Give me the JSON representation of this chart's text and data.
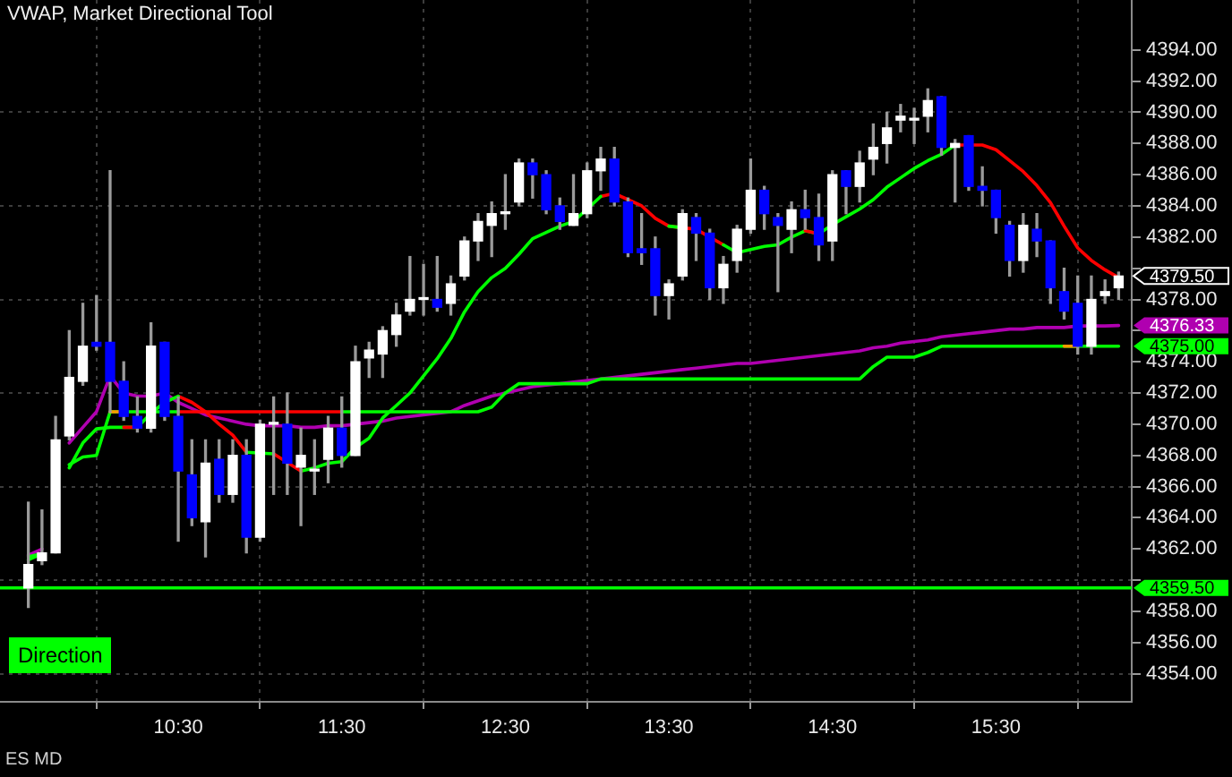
{
  "chart_data": {
    "type": "candlestick",
    "title": "VWAP, Market Directional Tool",
    "annotations": [
      "Direction",
      "ES MD"
    ],
    "x": [
      9.5833,
      9.6667,
      9.75,
      9.8333,
      9.9167,
      10,
      10.0833,
      10.1667,
      10.25,
      10.3333,
      10.4167,
      10.5,
      10.5833,
      10.6667,
      10.75,
      10.8333,
      10.9167,
      11,
      11.0833,
      11.1667,
      11.25,
      11.3333,
      11.4167,
      11.5,
      11.5833,
      11.6667,
      11.75,
      11.8333,
      11.9167,
      12,
      12.0833,
      12.1667,
      12.25,
      12.3333,
      12.4167,
      12.5,
      12.5833,
      12.6667,
      12.75,
      12.8333,
      12.9167,
      13,
      13.0833,
      13.1667,
      13.25,
      13.3333,
      13.4167,
      13.5,
      13.5833,
      13.6667,
      13.75,
      13.8333,
      13.9167,
      14,
      14.0833,
      14.1667,
      14.25,
      14.3333,
      14.4167,
      14.5,
      14.5833,
      14.6667,
      14.75,
      14.8333,
      14.9167,
      15,
      15.0833,
      15.1667,
      15.25,
      15.3333,
      15.4167,
      15.5,
      15.5833,
      15.6667,
      15.75,
      15.8333,
      15.9167,
      16,
      16.0833,
      16.1667,
      16.25
    ],
    "xlim": [
      9.41,
      16.33
    ],
    "xticks": [
      {
        "value": 10.5,
        "label": "10:30"
      },
      {
        "value": 11.5,
        "label": "11:30"
      },
      {
        "value": 12.5,
        "label": "12:30"
      },
      {
        "value": 13.5,
        "label": "13:30"
      },
      {
        "value": 14.5,
        "label": "14:30"
      },
      {
        "value": 15.5,
        "label": "15:30"
      }
    ],
    "ylim": [
      4352.2,
      4397.2
    ],
    "yticks": [
      {
        "value": 4354,
        "label": "4354.00"
      },
      {
        "value": 4356,
        "label": "4356.00"
      },
      {
        "value": 4358,
        "label": "4358.00"
      },
      {
        "value": 4360,
        "label": null
      },
      {
        "value": 4362,
        "label": "4362.00"
      },
      {
        "value": 4364,
        "label": "4364.00"
      },
      {
        "value": 4366,
        "label": "4366.00"
      },
      {
        "value": 4368,
        "label": "4368.00"
      },
      {
        "value": 4370,
        "label": "4370.00"
      },
      {
        "value": 4372,
        "label": "4372.00"
      },
      {
        "value": 4374,
        "label": "4374.00"
      },
      {
        "value": 4376,
        "label": null
      },
      {
        "value": 4378,
        "label": "4378.00"
      },
      {
        "value": 4380,
        "label": null
      },
      {
        "value": 4382,
        "label": "4382.00"
      },
      {
        "value": 4384,
        "label": "4384.00"
      },
      {
        "value": 4386,
        "label": "4386.00"
      },
      {
        "value": 4388,
        "label": "4388.00"
      },
      {
        "value": 4390,
        "label": "4390.00"
      },
      {
        "value": 4392,
        "label": "4392.00"
      },
      {
        "value": 4394,
        "label": "4394.00"
      }
    ],
    "grid": true,
    "series": [
      {
        "ohlc": [
          [
            4359.5,
            4365,
            4358.25,
            4361
          ],
          [
            4361.25,
            4364.5,
            4361,
            4361.75
          ],
          [
            4361.75,
            4370.5,
            4361.75,
            4369
          ],
          [
            4369.25,
            4376,
            4369,
            4373
          ],
          [
            4372.75,
            4377.75,
            4372.5,
            4375
          ],
          [
            4375.25,
            4378.25,
            4374.75,
            4375
          ],
          [
            4375.25,
            4386.25,
            4370.75,
            4372.75
          ],
          [
            4372.75,
            4374,
            4370.25,
            4370.5
          ],
          [
            4370.5,
            4371.75,
            4369.5,
            4369.75
          ],
          [
            4369.75,
            4376.5,
            4369.5,
            4375
          ],
          [
            4375.25,
            4375.25,
            4370.25,
            4370.5
          ],
          [
            4370.5,
            4371.75,
            4362.5,
            4367
          ],
          [
            4366.75,
            4369,
            4363.5,
            4364
          ],
          [
            4363.75,
            4369,
            4361.5,
            4367.5
          ],
          [
            4367.75,
            4369,
            4365,
            4365.5
          ],
          [
            4365.5,
            4369,
            4365,
            4368
          ],
          [
            4368,
            4369,
            4361.75,
            4362.75
          ],
          [
            4362.75,
            4370.25,
            4362.5,
            4370
          ],
          [
            4370,
            4371.75,
            4365.5,
            4370
          ],
          [
            4370,
            4372,
            4365.5,
            4367.5
          ],
          [
            4367.25,
            4369.75,
            4363.5,
            4368
          ],
          [
            4367,
            4369,
            4365.5,
            4367
          ],
          [
            4367.75,
            4370.5,
            4366.25,
            4369.75
          ],
          [
            4369.75,
            4371.75,
            4367.25,
            4368
          ],
          [
            4368,
            4375,
            4368,
            4374
          ],
          [
            4374.25,
            4375.25,
            4373,
            4374.75
          ],
          [
            4374.5,
            4376.25,
            4373,
            4376
          ],
          [
            4375.75,
            4377.75,
            4375,
            4377
          ],
          [
            4377.25,
            4380.75,
            4377,
            4378
          ],
          [
            4378,
            4380.25,
            4377,
            4378
          ],
          [
            4378,
            4380.75,
            4377.25,
            4377.5
          ],
          [
            4377.75,
            4379.5,
            4377,
            4379
          ],
          [
            4379.5,
            4382,
            4379.25,
            4381.75
          ],
          [
            4381.75,
            4383.5,
            4380.5,
            4383
          ],
          [
            4382.75,
            4384.25,
            4380.75,
            4383.5
          ],
          [
            4383.5,
            4386,
            4382.5,
            4383.5
          ],
          [
            4384.25,
            4387,
            4384,
            4386.75
          ],
          [
            4386.75,
            4387,
            4384.5,
            4386
          ],
          [
            4386,
            4386.25,
            4383.5,
            4383.75
          ],
          [
            4384,
            4384.5,
            4382.5,
            4383
          ],
          [
            4382.75,
            4386,
            4382.75,
            4383.5
          ],
          [
            4383.5,
            4386.75,
            4383.25,
            4386.25
          ],
          [
            4386.25,
            4387.75,
            4385,
            4387
          ],
          [
            4387,
            4387.75,
            4384,
            4384.25
          ],
          [
            4384.25,
            4384.5,
            4380.75,
            4381
          ],
          [
            4381.25,
            4383.5,
            4380.25,
            4381
          ],
          [
            4381.25,
            4382,
            4377,
            4378.25
          ],
          [
            4378.25,
            4379.25,
            4376.75,
            4379
          ],
          [
            4379.5,
            4383.75,
            4379.25,
            4383.5
          ],
          [
            4383.25,
            4383.5,
            4380.5,
            4382.25
          ],
          [
            4382.25,
            4382.5,
            4378,
            4378.75
          ],
          [
            4378.75,
            4380.75,
            4377.75,
            4380.25
          ],
          [
            4380.5,
            4382.75,
            4379.75,
            4382.5
          ],
          [
            4382.5,
            4387,
            4382.25,
            4385
          ],
          [
            4385,
            4385.25,
            4382.5,
            4383.5
          ],
          [
            4383.25,
            4383.5,
            4378.5,
            4382.75
          ],
          [
            4382.5,
            4384.25,
            4381,
            4383.75
          ],
          [
            4383.75,
            4385,
            4382.5,
            4383.25
          ],
          [
            4383.25,
            4384.75,
            4380.5,
            4381.5
          ],
          [
            4381.75,
            4386.25,
            4380.5,
            4386
          ],
          [
            4386.25,
            4386.25,
            4383.5,
            4385.25
          ],
          [
            4385.25,
            4387.5,
            4384.25,
            4386.75
          ],
          [
            4387,
            4389.25,
            4386,
            4387.75
          ],
          [
            4388,
            4390,
            4386.75,
            4389
          ],
          [
            4389.5,
            4390.5,
            4388.75,
            4389.75
          ],
          [
            4389.5,
            4390.25,
            4388,
            4389.5
          ],
          [
            4389.75,
            4391.5,
            4388.75,
            4390.75
          ],
          [
            4391,
            4391,
            4387.25,
            4387.75
          ],
          [
            4387.75,
            4388.25,
            4384.25,
            4388
          ],
          [
            4388.5,
            4388.5,
            4385,
            4385.25
          ],
          [
            4385.25,
            4386.5,
            4384,
            4385
          ],
          [
            4385,
            4385,
            4382.25,
            4383.25
          ],
          [
            4382.75,
            4383,
            4379.5,
            4380.5
          ],
          [
            4380.5,
            4383.5,
            4379.75,
            4382.75
          ],
          [
            4382.5,
            4383.5,
            4380.75,
            4381.75
          ],
          [
            4381.75,
            4381.75,
            4377.75,
            4378.75
          ],
          [
            4378.5,
            4380,
            4376.75,
            4377.25
          ],
          [
            4377.75,
            4379.5,
            4374.5,
            4375
          ],
          [
            4375,
            4379.5,
            4374.5,
            4378
          ],
          [
            4378.25,
            4379.25,
            4377.75,
            4378.5
          ],
          [
            4378.75,
            4379.75,
            4378,
            4379.5
          ]
        ],
        "colors": [
          "#ffffff",
          "#ffffff",
          "#ffffff",
          "#ffffff",
          "#ffffff",
          "#0000ff",
          "#0000ff",
          "#0000ff",
          "#0000ff",
          "#ffffff",
          "#0000ff",
          "#0000ff",
          "#0000ff",
          "#ffffff",
          "#0000ff",
          "#ffffff",
          "#0000ff",
          "#ffffff",
          "#ffffff",
          "#0000ff",
          "#ffffff",
          "#ffffff",
          "#ffffff",
          "#0000ff",
          "#ffffff",
          "#ffffff",
          "#ffffff",
          "#ffffff",
          "#ffffff",
          "#ffffff",
          "#0000ff",
          "#ffffff",
          "#ffffff",
          "#ffffff",
          "#ffffff",
          "#ffffff",
          "#ffffff",
          "#0000ff",
          "#0000ff",
          "#0000ff",
          "#ffffff",
          "#ffffff",
          "#ffffff",
          "#0000ff",
          "#0000ff",
          "#0000ff",
          "#0000ff",
          "#ffffff",
          "#ffffff",
          "#0000ff",
          "#0000ff",
          "#ffffff",
          "#ffffff",
          "#ffffff",
          "#0000ff",
          "#0000ff",
          "#ffffff",
          "#0000ff",
          "#0000ff",
          "#ffffff",
          "#0000ff",
          "#ffffff",
          "#ffffff",
          "#ffffff",
          "#ffffff",
          "#ffffff",
          "#ffffff",
          "#0000ff",
          "#ffffff",
          "#0000ff",
          "#0000ff",
          "#0000ff",
          "#0000ff",
          "#ffffff",
          "#0000ff",
          "#0000ff",
          "#0000ff",
          "#0000ff",
          "#ffffff",
          "#ffffff",
          "#ffffff"
        ],
        "value_labels": [
          null,
          null,
          null,
          null,
          null,
          null,
          null,
          null,
          null,
          null,
          null,
          null,
          null,
          null,
          null,
          null,
          null,
          null,
          null,
          null,
          null,
          null,
          null,
          null,
          null,
          null,
          null,
          null,
          null,
          null,
          null,
          null,
          null,
          null,
          null,
          null,
          null,
          null,
          null,
          null,
          null,
          null,
          null,
          null,
          null,
          null,
          null,
          null,
          null,
          null,
          null,
          null,
          null,
          null,
          null,
          null,
          null,
          null,
          null,
          null,
          null,
          null,
          null,
          null,
          null,
          null,
          null,
          null,
          null,
          null,
          null,
          null,
          null,
          null,
          null,
          null,
          null,
          null,
          null,
          null,
          "4379.50"
        ]
      },
      {
        "type": "line",
        "color": "#b000b0",
        "values": [
          4361.6,
          4362.0,
          null,
          4368.8,
          4369.8,
          4370.8,
          4373.1,
          4372.0,
          4371.8,
          4371.8,
          4372.0,
          4371.4,
          4371.0,
          4370.6,
          4370.4,
          4370.2,
          4370.0,
          4369.9,
          4369.9,
          4369.9,
          4369.8,
          4369.8,
          4369.9,
          4369.9,
          4370.0,
          4370.1,
          4370.2,
          4370.4,
          4370.5,
          4370.6,
          4370.7,
          4370.8,
          4371.2,
          4371.5,
          4371.8,
          4372.0,
          4372.2,
          4372.4,
          4372.5,
          4372.6,
          4372.7,
          4372.8,
          4372.9,
          4373.0,
          4373.1,
          4373.2,
          4373.3,
          4373.4,
          4373.5,
          4373.6,
          4373.7,
          4373.8,
          4373.9,
          4373.9,
          4374.0,
          4374.1,
          4374.2,
          4374.3,
          4374.4,
          4374.5,
          4374.6,
          4374.7,
          4374.9,
          4375.0,
          4375.2,
          4375.3,
          4375.4,
          4375.6,
          4375.7,
          4375.8,
          4375.9,
          4376.0,
          4376.1,
          4376.1,
          4376.2,
          4376.2,
          4376.2,
          4376.3,
          4376.3,
          4376.3,
          4376.33
        ],
        "value_labels": [
          null,
          null,
          null,
          null,
          null,
          null,
          null,
          null,
          null,
          null,
          null,
          null,
          null,
          null,
          null,
          null,
          null,
          null,
          null,
          null,
          null,
          null,
          null,
          null,
          null,
          null,
          null,
          null,
          null,
          null,
          null,
          null,
          null,
          null,
          null,
          null,
          null,
          null,
          null,
          null,
          null,
          null,
          null,
          null,
          null,
          null,
          null,
          null,
          null,
          null,
          null,
          null,
          null,
          null,
          null,
          null,
          null,
          null,
          null,
          null,
          null,
          null,
          null,
          null,
          null,
          null,
          null,
          null,
          null,
          null,
          null,
          null,
          null,
          null,
          null,
          null,
          null,
          null,
          null,
          null,
          "4376.33"
        ]
      },
      {
        "type": "line",
        "color": "#ff0000",
        "values": [
          null,
          null,
          null,
          null,
          null,
          null,
          null,
          null,
          null,
          null,
          null,
          4370.8,
          4370.8,
          4370.8,
          4370.8,
          4370.8,
          4370.8,
          4370.8,
          4370.8,
          4370.8,
          4370.8,
          4370.8,
          4370.8,
          4370.8,
          null,
          null,
          null,
          null,
          null,
          null,
          null,
          null,
          null,
          null,
          null,
          null,
          null,
          null,
          null,
          null,
          null,
          null,
          null,
          null,
          null,
          null,
          null,
          null,
          null,
          null,
          null,
          null,
          null,
          null,
          null,
          null,
          null,
          null,
          null,
          null,
          null,
          null,
          null,
          null,
          null,
          null,
          null,
          null,
          null,
          null,
          null,
          null,
          null,
          null,
          null,
          null,
          null,
          null,
          null,
          null,
          null
        ]
      },
      {
        "type": "line",
        "color": "#00ff00",
        "values": [
          4361.5,
          4361.7,
          null,
          4367.4,
          4367.9,
          4368.0,
          4370.8,
          4370.8,
          4370.8,
          4370.8,
          4370.8,
          4370.8,
          null,
          null,
          null,
          null,
          null,
          null,
          null,
          null,
          null,
          null,
          null,
          4370.8,
          4370.8,
          4370.8,
          4370.8,
          4370.8,
          4370.8,
          4370.8,
          4370.8,
          4370.8,
          4370.8,
          4370.8,
          4371.1,
          4372.0,
          4372.6,
          4372.6,
          4372.6,
          4372.6,
          4372.6,
          4372.6,
          4372.9,
          4372.9,
          4372.9,
          4372.9,
          4372.9,
          4372.9,
          4372.9,
          4372.9,
          4372.9,
          4372.9,
          4372.9,
          4372.9,
          4372.9,
          4372.9,
          4372.9,
          4372.9,
          4372.9,
          4372.9,
          4372.9,
          4372.9,
          4373.7,
          4374.3,
          4374.3,
          4374.3,
          4374.6,
          4375,
          4375,
          4375,
          4375,
          4375,
          4375,
          4375,
          4375,
          4375,
          4375,
          4375,
          4375,
          4375,
          4375
        ],
        "value_labels": [
          null,
          null,
          null,
          null,
          null,
          null,
          null,
          null,
          null,
          null,
          null,
          null,
          null,
          null,
          null,
          null,
          null,
          null,
          null,
          null,
          null,
          null,
          null,
          null,
          null,
          null,
          null,
          null,
          null,
          null,
          null,
          null,
          null,
          null,
          null,
          null,
          null,
          null,
          null,
          null,
          null,
          null,
          null,
          null,
          null,
          null,
          null,
          null,
          null,
          null,
          null,
          null,
          null,
          null,
          null,
          null,
          null,
          null,
          null,
          null,
          null,
          null,
          null,
          null,
          null,
          null,
          null,
          null,
          null,
          null,
          null,
          null,
          null,
          null,
          null,
          null,
          null,
          null,
          null,
          null,
          "4375.00"
        ]
      },
      {
        "type": "line",
        "color": "#ff9900",
        "values": [
          null,
          null,
          null,
          null,
          null,
          null,
          4370.8,
          4370.8,
          null,
          null,
          null,
          null,
          null,
          null,
          null,
          null,
          null,
          null,
          null,
          null,
          null,
          null,
          null,
          null,
          null,
          null,
          null,
          null,
          null,
          null,
          null,
          null,
          null,
          null,
          null,
          null,
          null,
          null,
          null,
          null,
          null,
          null,
          null,
          null,
          null,
          null,
          null,
          null,
          null,
          null,
          null,
          null,
          null,
          null,
          null,
          null,
          null,
          null,
          null,
          null,
          null,
          null,
          null,
          null,
          null,
          null,
          null,
          null,
          null,
          null,
          null,
          null,
          null,
          null,
          null,
          null,
          4375,
          4375,
          null,
          null,
          null
        ]
      },
      {
        "type": "line",
        "color": "#ff0000",
        "values": [
          null,
          null,
          null,
          null,
          null,
          null,
          null,
          null,
          null,
          null,
          null,
          4371.8,
          4371.4,
          4370.8,
          4370.0,
          4369.3,
          4368.2,
          null,
          null,
          null,
          null,
          null,
          null,
          null,
          null,
          null,
          null,
          null,
          null,
          null,
          null,
          null,
          null,
          null,
          null,
          null,
          null,
          null,
          null,
          null,
          null,
          null,
          4384.6,
          4384.8,
          4384.4,
          4384.0,
          4383.2,
          4382.7,
          4382.6,
          4382.5,
          4382.0,
          4381.5,
          null,
          null,
          null,
          null,
          null,
          null,
          null,
          null,
          null,
          null,
          null,
          null,
          null,
          null,
          null,
          null,
          4387.9,
          4387.9,
          4387.9,
          4387.6,
          4386.9,
          4386.2,
          4385.3,
          4384.2,
          4382.7,
          4381.3,
          4380.5,
          4379.9,
          4379.4
        ]
      },
      {
        "type": "line",
        "color": "#00ff00",
        "values": [
          4361.3,
          4361.7,
          null,
          4367.2,
          4368.8,
          4369.7,
          4369.8,
          4369.8,
          4369.8,
          4370.7,
          4371.4,
          4371.8,
          null,
          null,
          null,
          null,
          null,
          null,
          null,
          null,
          4367.0,
          4367.2,
          4367.5,
          4367.6,
          4368.5,
          4369.1,
          4370.4,
          4371.2,
          4372.0,
          4373.1,
          4374.2,
          4375.5,
          4377.2,
          4378.5,
          4379.4,
          4380.0,
          4380.9,
          4381.9,
          4382.3,
          4382.7,
          4383.0,
          4383.8,
          4384.6,
          null,
          null,
          null,
          null,
          4382.7,
          4382.6,
          null,
          null,
          4381.5,
          4381.0,
          4381.2,
          4381.4,
          4381.5,
          4382.0,
          4382.4,
          4382.2,
          4382.8,
          4383.3,
          4383.8,
          4384.4,
          4385.2,
          4385.8,
          4386.4,
          4386.9,
          4387.3,
          4387.9,
          null,
          null,
          null,
          null,
          null,
          null,
          null,
          null,
          null,
          null,
          null,
          null
        ]
      },
      {
        "type": "line",
        "color": "#ff0000",
        "values": [
          null,
          null,
          null,
          null,
          null,
          null,
          null,
          4369.8,
          4369.8,
          null,
          null,
          null,
          null,
          null,
          null,
          null,
          null,
          null,
          null,
          null,
          null,
          null,
          null,
          null,
          null,
          null,
          null,
          null,
          null,
          null,
          null,
          null,
          null,
          null,
          null,
          null,
          null,
          null,
          null,
          null,
          null,
          null,
          null,
          null,
          null,
          null,
          null,
          null,
          null,
          null,
          null,
          null,
          null,
          null,
          null,
          null,
          null,
          4382.4,
          4382.2,
          null,
          null,
          null,
          null,
          null,
          null,
          null,
          null,
          null,
          null,
          null,
          null,
          null,
          null,
          null,
          null,
          null,
          null,
          null,
          null,
          null,
          null
        ]
      },
      {
        "type": "line",
        "color": "#00ff00",
        "x": [
          10.9167,
          11.0833
        ],
        "values": [
          4368.2,
          4368.1
        ]
      },
      {
        "type": "line",
        "color": "#ff0000",
        "x": [
          11.0833,
          11.25
        ],
        "values": [
          4368.1,
          4367.0
        ]
      }
    ],
    "ref_lines": [
      {
        "axis": "y",
        "value": 4359.5,
        "label": "4359.50",
        "color": "#00ff00"
      }
    ]
  }
}
